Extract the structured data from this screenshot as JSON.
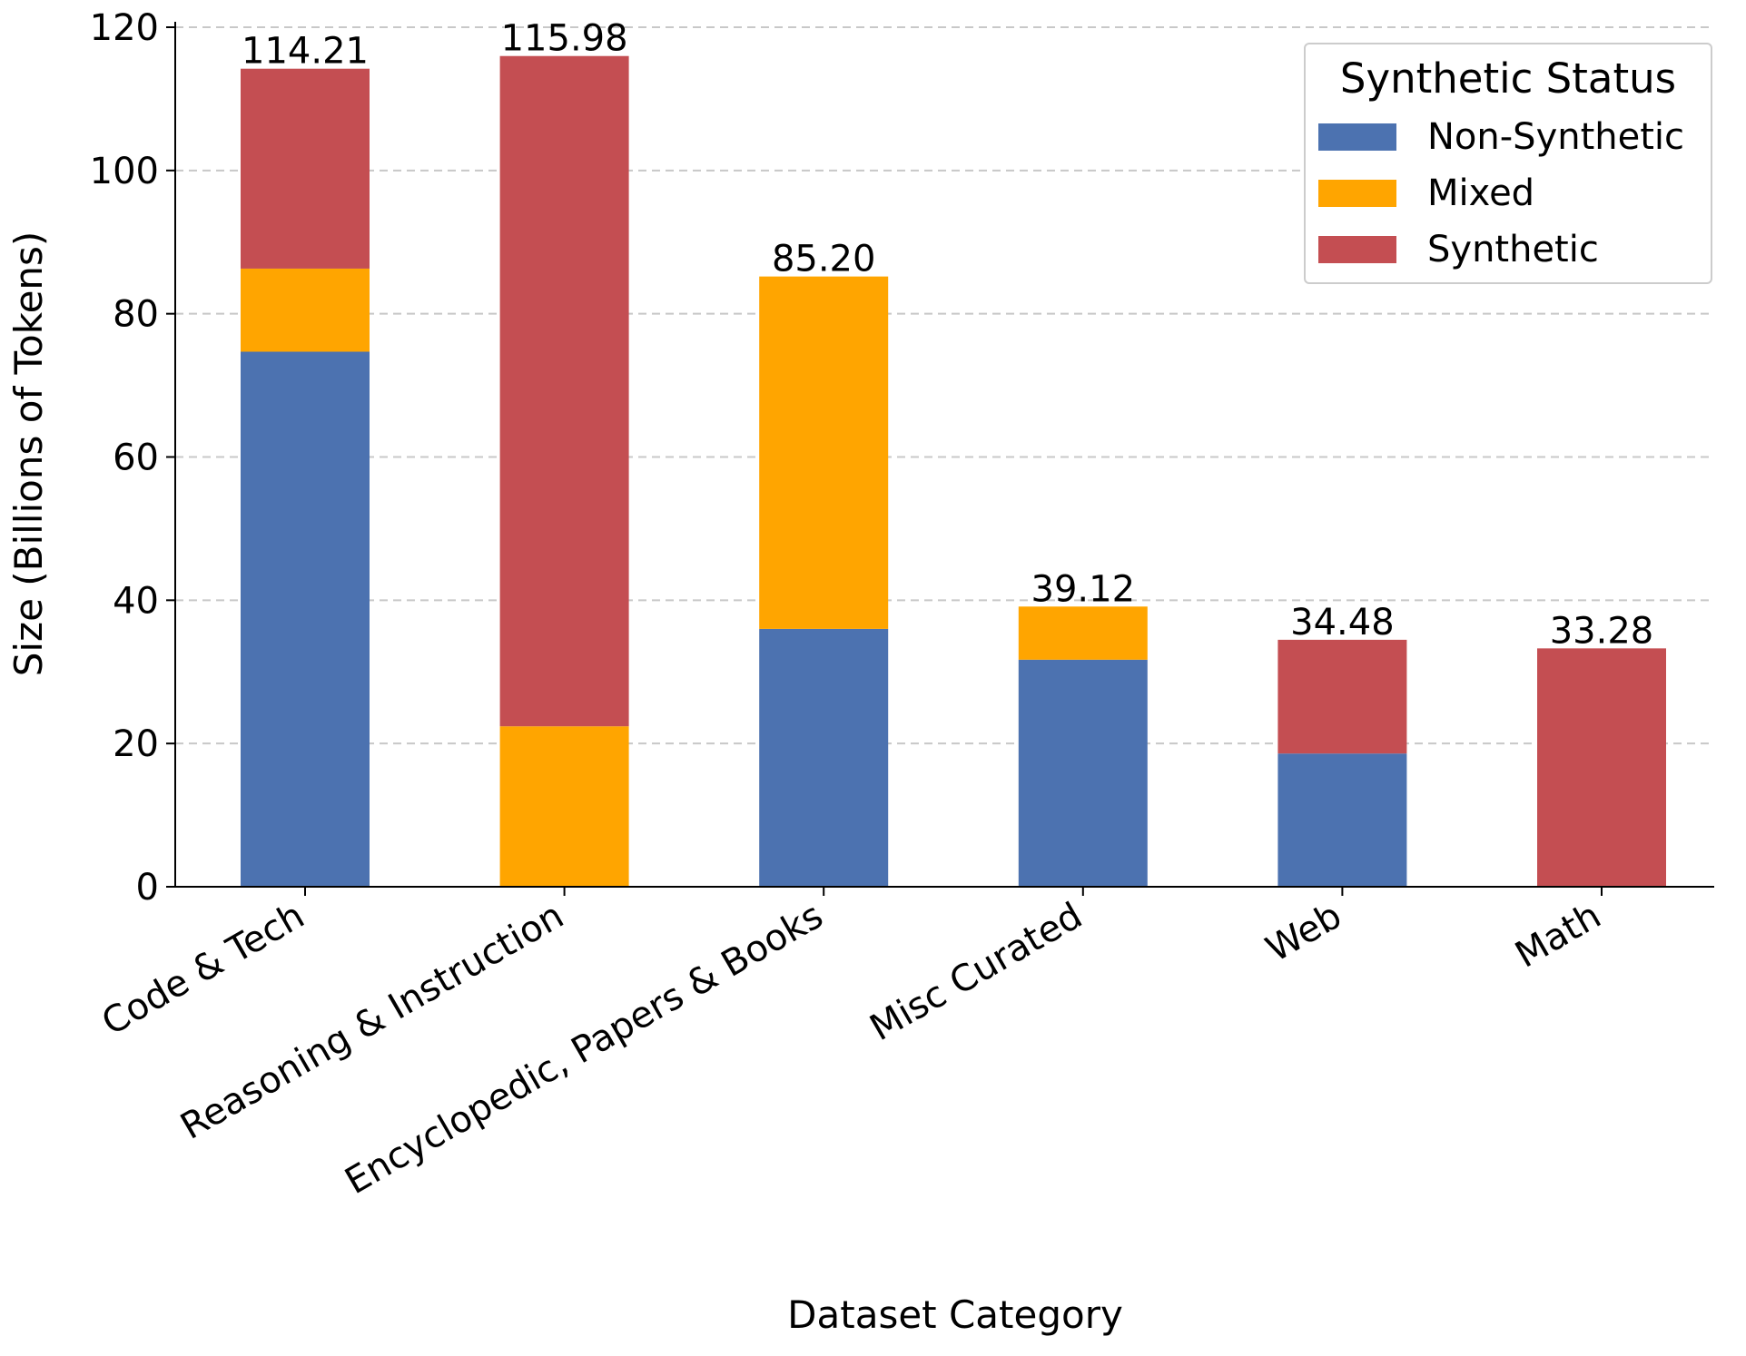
{
  "chart_data": {
    "type": "bar",
    "stacked": true,
    "categories": [
      "Code & Tech",
      "Reasoning & Instruction",
      "Encyclopedic, Papers & Books",
      "Misc Curated",
      "Web",
      "Math"
    ],
    "series": [
      {
        "name": "Non-Synthetic",
        "color": "#4c72b0",
        "values": [
          74.7,
          0,
          36.0,
          31.7,
          18.6,
          0
        ]
      },
      {
        "name": "Mixed",
        "color": "#ffa500",
        "values": [
          11.6,
          22.4,
          49.2,
          7.42,
          0,
          0
        ]
      },
      {
        "name": "Synthetic",
        "color": "#c44e52",
        "values": [
          27.91,
          93.58,
          0,
          0,
          15.88,
          33.28
        ]
      }
    ],
    "totals": [
      "114.21",
      "115.98",
      "85.20",
      "39.12",
      "34.48",
      "33.28"
    ],
    "title": "",
    "xlabel": "Dataset Category",
    "ylabel": "Size (Billions of Tokens)",
    "ylim": [
      0,
      120
    ],
    "yticks": [
      0,
      20,
      40,
      60,
      80,
      100,
      120
    ],
    "grid": "y-dashed",
    "legend": {
      "title": "Synthetic Status",
      "position": "top-right"
    }
  }
}
